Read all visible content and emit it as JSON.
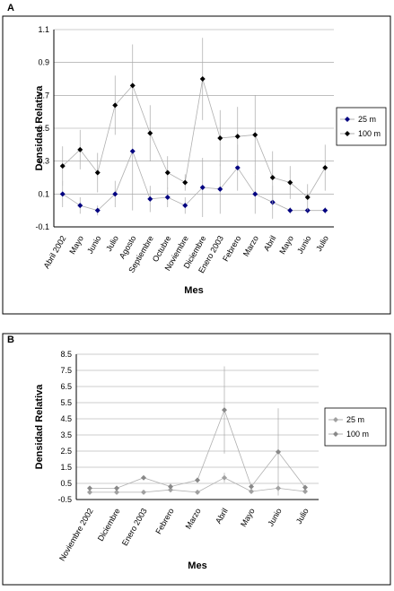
{
  "chart_data": [
    {
      "type": "line",
      "panel_label": "A",
      "ylabel": "Densidad Relativa",
      "xlabel": "Mes",
      "categories": [
        "Abril 2002",
        "Mayo",
        "Junio",
        "Julio",
        "Agosto",
        "Septiembre",
        "Octubre",
        "Noviembre",
        "Diciembre",
        "Enero 2003",
        "Febrero",
        "Marzo",
        "Abril",
        "Mayo",
        "Junio",
        "Julio"
      ],
      "ylim": [
        -0.1,
        1.1
      ],
      "yticks": [
        -0.1,
        0.1,
        0.3,
        0.5,
        0.7,
        0.9,
        1.1
      ],
      "grid": true,
      "legend": "right",
      "series": [
        {
          "name": "25 m",
          "color": "#000080",
          "values": [
            0.1,
            0.03,
            0,
            0.1,
            0.36,
            0.07,
            0.08,
            0.03,
            0.14,
            0.13,
            0.26,
            0.1,
            0.05,
            0,
            0,
            0
          ],
          "errors": [
            0.08,
            0.05,
            0.03,
            0.08,
            0.36,
            0.08,
            0.06,
            0.05,
            0.18,
            0.15,
            0.14,
            0.12,
            0.1,
            0.02,
            0.02,
            0.02
          ]
        },
        {
          "name": "100 m",
          "color": "#000000",
          "values": [
            0.27,
            0.37,
            0.23,
            0.64,
            0.76,
            0.47,
            0.23,
            0.17,
            0.8,
            0.44,
            0.45,
            0.46,
            0.2,
            0.17,
            0.08,
            0.26
          ],
          "errors": [
            0.12,
            0.12,
            0.12,
            0.18,
            0.25,
            0.17,
            0.1,
            0.05,
            0.25,
            0.17,
            0.18,
            0.24,
            0.16,
            0.1,
            0.08,
            0.14
          ]
        }
      ]
    },
    {
      "type": "line",
      "panel_label": "B",
      "ylabel": "Densidad Relativa",
      "xlabel": "Mes",
      "categories": [
        "Noviembre 2002",
        "Diciembre",
        "Enero 2003",
        "Febrero",
        "Marzo",
        "Abril",
        "Mayo",
        "Junio",
        "Julio"
      ],
      "ylim": [
        -0.5,
        8.5
      ],
      "yticks": [
        -0.5,
        0.5,
        1.5,
        2.5,
        3.5,
        4.5,
        5.5,
        6.5,
        7.5,
        8.5
      ],
      "grid": true,
      "legend": "right",
      "series": [
        {
          "name": "25 m",
          "color": "#a0a0a0",
          "values": [
            -0.05,
            -0.05,
            -0.05,
            0.1,
            -0.05,
            0.85,
            0,
            0.2,
            0
          ],
          "errors": [
            0.05,
            0.05,
            0.05,
            0.1,
            0.05,
            0.3,
            0.05,
            0.2,
            0.05
          ]
        },
        {
          "name": "100 m",
          "color": "#888888",
          "values": [
            0.2,
            0.2,
            0.85,
            0.3,
            0.7,
            5.05,
            0.3,
            2.45,
            0.25
          ],
          "errors": [
            0.1,
            0.1,
            0.1,
            0.2,
            0.1,
            2.7,
            0.1,
            2.7,
            0.1
          ]
        }
      ]
    }
  ]
}
